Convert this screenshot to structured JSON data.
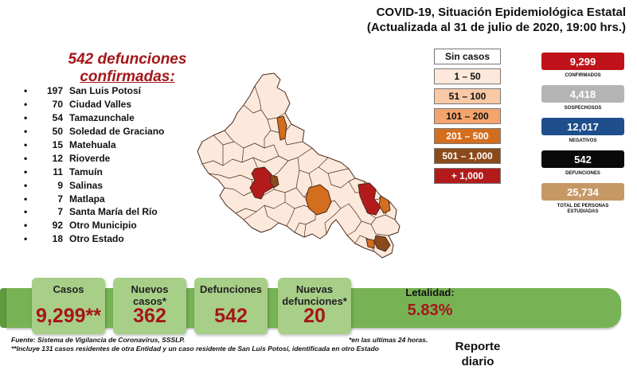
{
  "header": {
    "line1": "COVID-19, Situación Epidemiológica Estatal",
    "line2": "(Actualizada al 31 de julio de 2020, 19:00 hrs.)"
  },
  "deaths_heading": {
    "line1": "542 defunciones",
    "line2": "confirmadas:"
  },
  "municipalities": [
    {
      "bullet": "•",
      "count": "197",
      "name": "San Luis Potosí"
    },
    {
      "bullet": "•",
      "count": "70",
      "name": "Ciudad Valles"
    },
    {
      "bullet": "•",
      "count": "54",
      "name": "Tamazunchale"
    },
    {
      "bullet": "•",
      "count": "50",
      "name": "Soledad de Graciano"
    },
    {
      "bullet": "•",
      "count": "15",
      "name": "Matehuala"
    },
    {
      "bullet": "•",
      "count": "12",
      "name": "Rioverde"
    },
    {
      "bullet": "•",
      "count": "11",
      "name": "Tamuín"
    },
    {
      "bullet": "•",
      "count": "9",
      "name": "Salinas"
    },
    {
      "bullet": "•",
      "count": "7",
      "name": "Matlapa"
    },
    {
      "bullet": "•",
      "count": "7",
      "name": "Santa María del Río"
    },
    {
      "bullet": "•",
      "count": "92",
      "name": "Otro Municipio"
    },
    {
      "bullet": "•",
      "count": "18",
      "name": "Otro Estado"
    }
  ],
  "legend": [
    {
      "label": "Sin casos",
      "bg": "#ffffff",
      "fg": "#111111"
    },
    {
      "label": "1 – 50",
      "bg": "#fde9dc",
      "fg": "#111111"
    },
    {
      "label": "51 – 100",
      "bg": "#f9c9a5",
      "fg": "#111111"
    },
    {
      "label": "101 – 200",
      "bg": "#f4a46c",
      "fg": "#111111"
    },
    {
      "label": "201 – 500",
      "bg": "#d36e1e",
      "fg": "#ffffff"
    },
    {
      "label": "501 – 1,000",
      "bg": "#8b4a1b",
      "fg": "#ffffff"
    },
    {
      "label": "+ 1,000",
      "bg": "#b31b1b",
      "fg": "#ffffff"
    }
  ],
  "stats": [
    {
      "value": "9,299",
      "label": "CONFIRMADOS",
      "color": "#c0121a"
    },
    {
      "value": "4,418",
      "label": "SOSPECHOSOS",
      "color": "#b4b4b4"
    },
    {
      "value": "12,017",
      "label": "NEGATIVOS",
      "color": "#1f4e8c"
    },
    {
      "value": "542",
      "label": "DEFUNCIONES",
      "color": "#0a0a0a"
    },
    {
      "value": "25,734",
      "label": "TOTAL DE PERSONAS ESTUDIADAS",
      "color": "#c69866"
    }
  ],
  "summary": {
    "casos_label": "Casos",
    "casos_value": "9,299**",
    "nuevos_casos_label": "Nuevos casos*",
    "nuevos_casos_value": "362",
    "defunciones_label": "Defunciones",
    "defunciones_value": "542",
    "nuevas_defunciones_label": "Nuevas defunciones*",
    "nuevas_defunciones_value": "20",
    "letalidad_label": "Letalidad:",
    "letalidad_value": "5.83%"
  },
  "footnotes": {
    "source": "Fuente: Sistema de Vigilancia de Coronavirus, SSSLP.",
    "note1": "*en las ultimas 24 horas.",
    "note2": "**Incluye 131 casos residentes de otra Entidad y un caso residente de San Luis Potosí, identificada en otro Estado"
  },
  "report": {
    "line1": "Reporte",
    "line2": "diario"
  },
  "map": {
    "base_fill": "#fde9dc",
    "border": "#4a2a1a"
  }
}
